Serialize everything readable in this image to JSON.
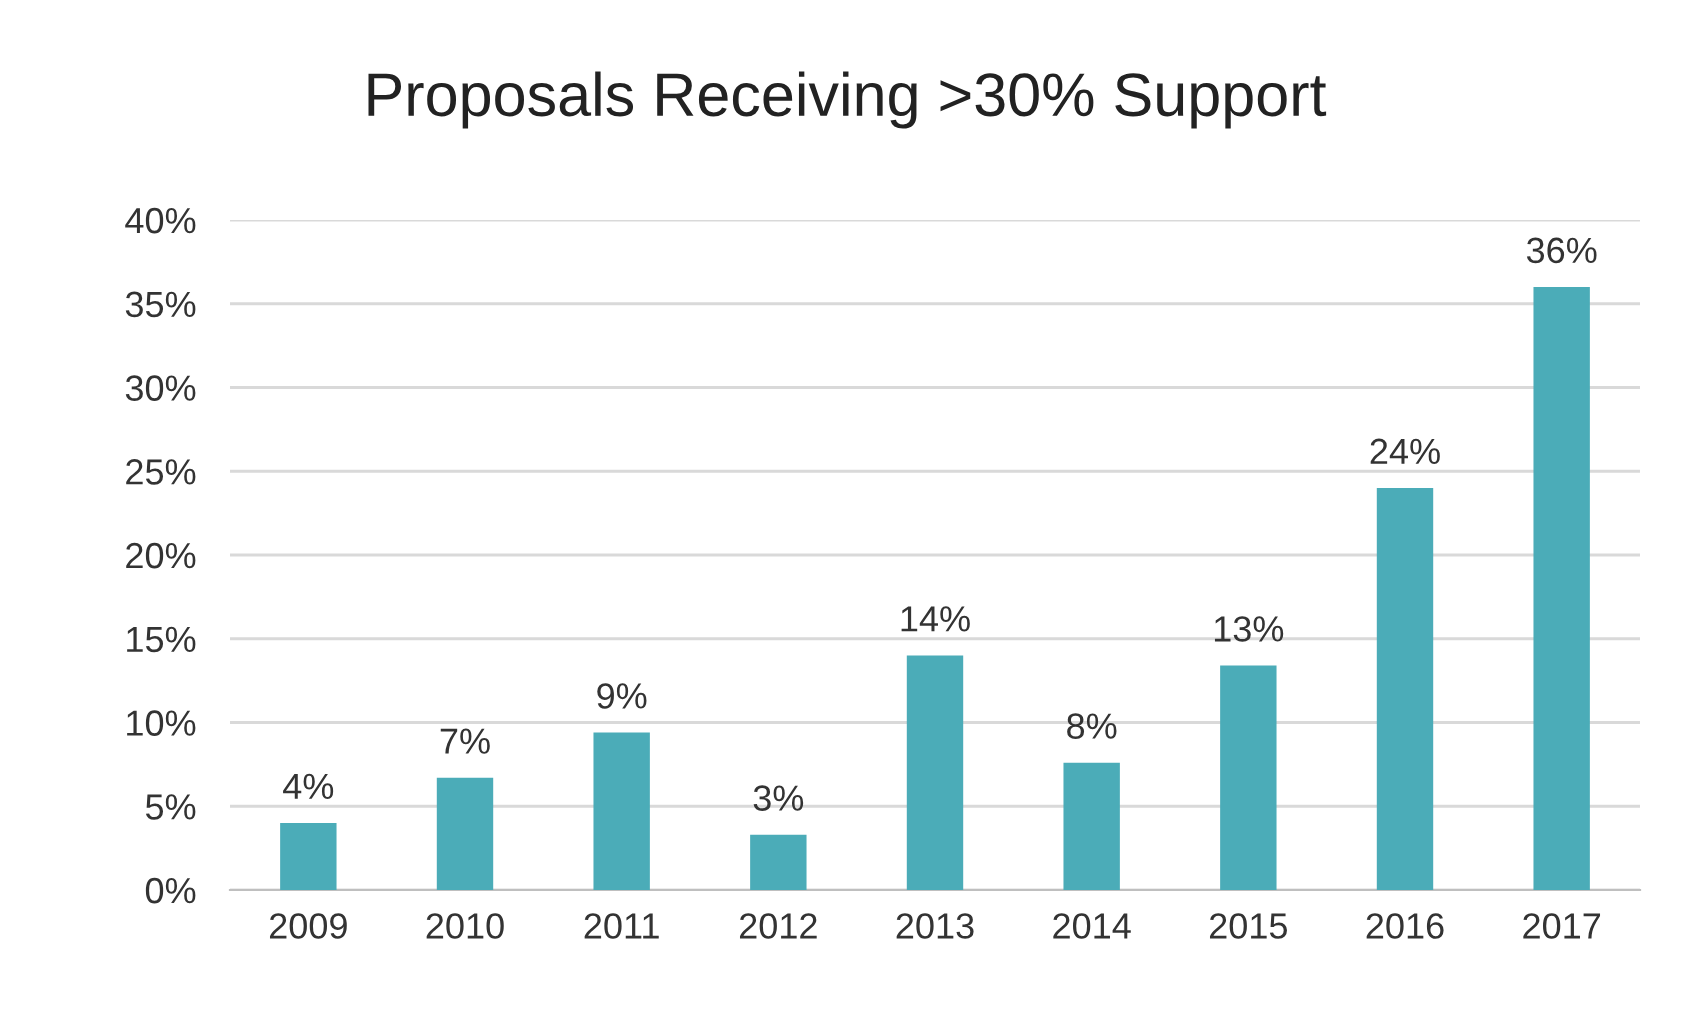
{
  "chart_data": {
    "type": "bar",
    "title": "Proposals Receiving >30% Support",
    "categories": [
      "2009",
      "2010",
      "2011",
      "2012",
      "2013",
      "2014",
      "2015",
      "2016",
      "2017"
    ],
    "values": [
      4,
      6.7,
      9.4,
      3.3,
      14,
      7.6,
      13.4,
      24,
      36
    ],
    "value_labels": [
      "4%",
      "7%",
      "9%",
      "3%",
      "14%",
      "8%",
      "13%",
      "24%",
      "36%"
    ],
    "color": "#4bacb8",
    "ylim": [
      0,
      40
    ],
    "yticks": [
      {
        "value": 0,
        "label": "0%"
      },
      {
        "value": 5,
        "label": "5%"
      },
      {
        "value": 10,
        "label": "10%"
      },
      {
        "value": 15,
        "label": "15%"
      },
      {
        "value": 20,
        "label": "20%"
      },
      {
        "value": 25,
        "label": "25%"
      },
      {
        "value": 30,
        "label": "30%"
      },
      {
        "value": 35,
        "label": "35%"
      },
      {
        "value": 40,
        "label": "40%"
      }
    ],
    "grid": "y"
  }
}
